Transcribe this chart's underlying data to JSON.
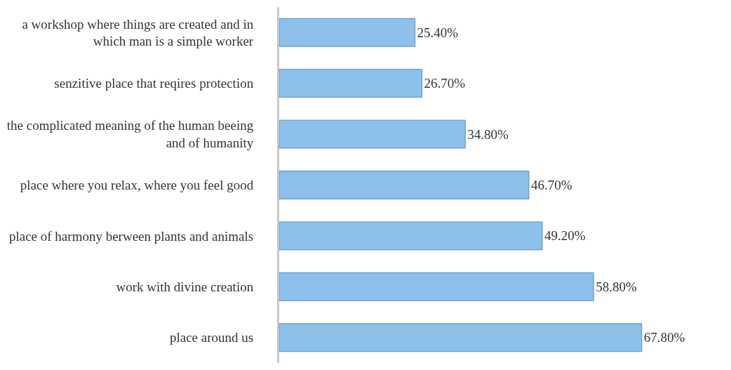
{
  "chart_data": {
    "type": "bar",
    "orientation": "horizontal",
    "categories": [
      "a workshop where things are created and in which man is a simple worker",
      "senzitive place that reqires protection",
      "the complicated meaning of the human beeing and of humanity",
      "place where you relax, where you feel good",
      "place of harmony berween plants and animals",
      "work with divine creation",
      "place around us"
    ],
    "values": [
      25.4,
      26.7,
      34.8,
      46.7,
      49.2,
      58.8,
      67.8
    ],
    "value_labels": [
      "25.40%",
      "26.70%",
      "34.80%",
      "46.70%",
      "49.20%",
      "58.80%",
      "67.80%"
    ],
    "color": "#8dc0ea",
    "tick_labels": "y",
    "legend": false
  }
}
